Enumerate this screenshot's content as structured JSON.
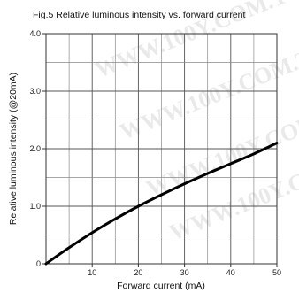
{
  "watermark": "WWW.100Y.COM.TW",
  "chart_data": {
    "type": "line",
    "title": "Fig.5 Relative luminous intensity vs. forward current",
    "xlabel": "Forward current (mA)",
    "ylabel": "Relative luminous intensity (@20mA)",
    "xlim": [
      0,
      50
    ],
    "ylim": [
      0,
      4.0
    ],
    "x_ticks": [
      10,
      20,
      30,
      40,
      50
    ],
    "x_tick_labels": [
      "10",
      "20",
      "30",
      "40",
      "50"
    ],
    "y_ticks": [
      0,
      1.0,
      2.0,
      3.0,
      4.0
    ],
    "y_tick_labels": [
      "0",
      "1.0",
      "2.0",
      "3.0",
      "4.0"
    ],
    "grid": true,
    "line_color": "#000000",
    "series": [
      {
        "x": [
          0,
          5,
          10,
          15,
          20,
          25,
          30,
          35,
          40,
          45,
          50
        ],
        "y": [
          0,
          0.28,
          0.54,
          0.78,
          1.0,
          1.2,
          1.39,
          1.57,
          1.74,
          1.91,
          2.1
        ]
      }
    ]
  }
}
